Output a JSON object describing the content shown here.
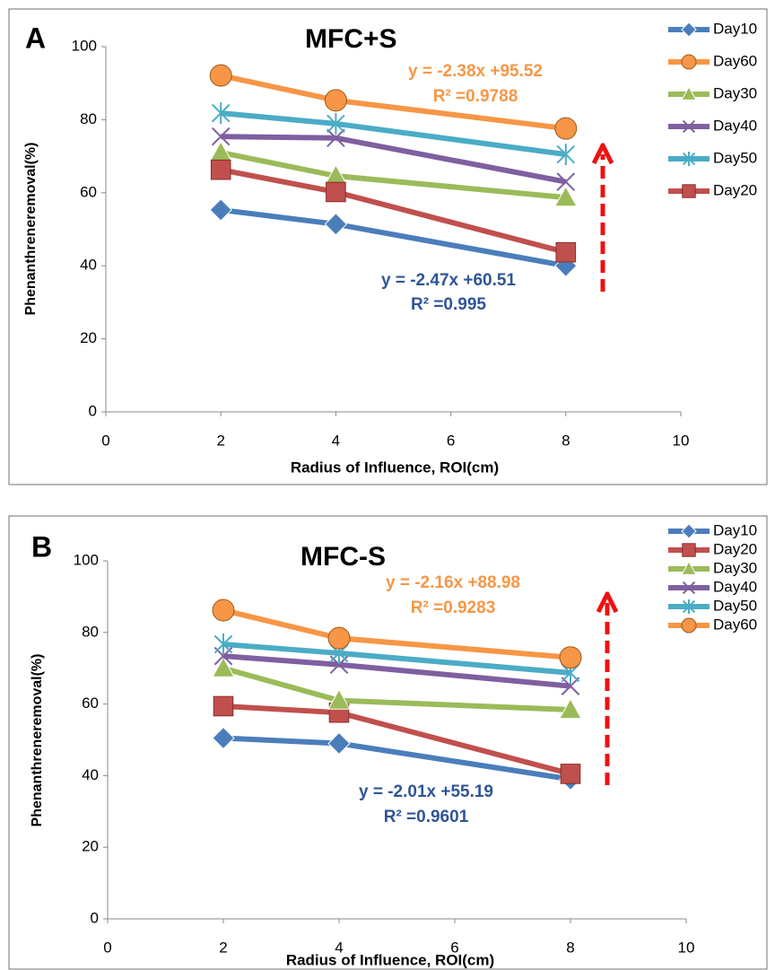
{
  "chart_data": [
    {
      "type": "line",
      "panel": "A",
      "title": "MFC+S",
      "x_label": "Radius of Influence, ROI(cm)",
      "y_label": "Phenanthreneremoval(%)",
      "x": [
        2,
        4,
        8
      ],
      "xlim": [
        0,
        10
      ],
      "xticks": [
        0,
        2,
        4,
        6,
        8,
        10
      ],
      "ylim": [
        0,
        100
      ],
      "yticks": [
        0,
        20,
        40,
        60,
        80,
        100
      ],
      "grid": false,
      "legend": "right",
      "series": [
        {
          "name": "Day10",
          "color": "#4a7ebb",
          "marker": "diamond",
          "values": [
            55.3,
            51.4,
            40
          ]
        },
        {
          "name": "Day60",
          "color": "#f79646",
          "marker": "circle",
          "values": [
            92.1,
            85.3,
            77.6
          ]
        },
        {
          "name": "Day30",
          "color": "#9bbb59",
          "marker": "triangle",
          "values": [
            71,
            64.6,
            58.7
          ]
        },
        {
          "name": "Day40",
          "color": "#7f5fa0",
          "marker": "x",
          "values": [
            75.4,
            75,
            63
          ]
        },
        {
          "name": "Day50",
          "color": "#4bacc6",
          "marker": "star",
          "values": [
            81.8,
            78.9,
            70.5
          ]
        },
        {
          "name": "Day20",
          "color": "#c0504d",
          "marker": "square",
          "values": [
            66.3,
            60.2,
            43.7
          ]
        }
      ],
      "annotations": [
        {
          "text": "y = -2.38x +95.52",
          "color": "#f79646"
        },
        {
          "text": "R² =0.9788",
          "color": "#f79646"
        },
        {
          "text": "y = -2.47x +60.51",
          "color": "#2f5597"
        },
        {
          "text": "R² =0.995",
          "color": "#2f5597"
        }
      ]
    },
    {
      "type": "line",
      "panel": "B",
      "title": "MFC-S",
      "x_label": "Radius of Influence, ROI(cm)",
      "y_label": "Phenanthreneremoval(%)",
      "x": [
        2,
        4,
        8
      ],
      "xlim": [
        0,
        10
      ],
      "xticks": [
        0,
        2,
        4,
        6,
        8,
        10
      ],
      "ylim": [
        0,
        100
      ],
      "yticks": [
        0,
        20,
        40,
        60,
        80,
        100
      ],
      "grid": false,
      "legend": "top-right",
      "series": [
        {
          "name": "Day10",
          "color": "#4a7ebb",
          "marker": "diamond",
          "values": [
            50.5,
            49,
            39
          ]
        },
        {
          "name": "Day20",
          "color": "#c0504d",
          "marker": "square",
          "values": [
            59.4,
            57.6,
            40.5
          ]
        },
        {
          "name": "Day30",
          "color": "#9bbb59",
          "marker": "triangle",
          "values": [
            70,
            61,
            58.4
          ]
        },
        {
          "name": "Day40",
          "color": "#7f5fa0",
          "marker": "x",
          "values": [
            73.4,
            71,
            65
          ]
        },
        {
          "name": "Day50",
          "color": "#4bacc6",
          "marker": "star",
          "values": [
            76.7,
            74.2,
            68.7
          ]
        },
        {
          "name": "Day60",
          "color": "#f79646",
          "marker": "circle",
          "values": [
            86.2,
            78.4,
            73
          ]
        }
      ],
      "annotations": [
        {
          "text": "y = -2.16x +88.98",
          "color": "#f79646"
        },
        {
          "text": "R² =0.9283",
          "color": "#f79646"
        },
        {
          "text": "y = -2.01x +55.19",
          "color": "#2f5597"
        },
        {
          "text": "R² =0.9601",
          "color": "#2f5597"
        }
      ]
    }
  ]
}
